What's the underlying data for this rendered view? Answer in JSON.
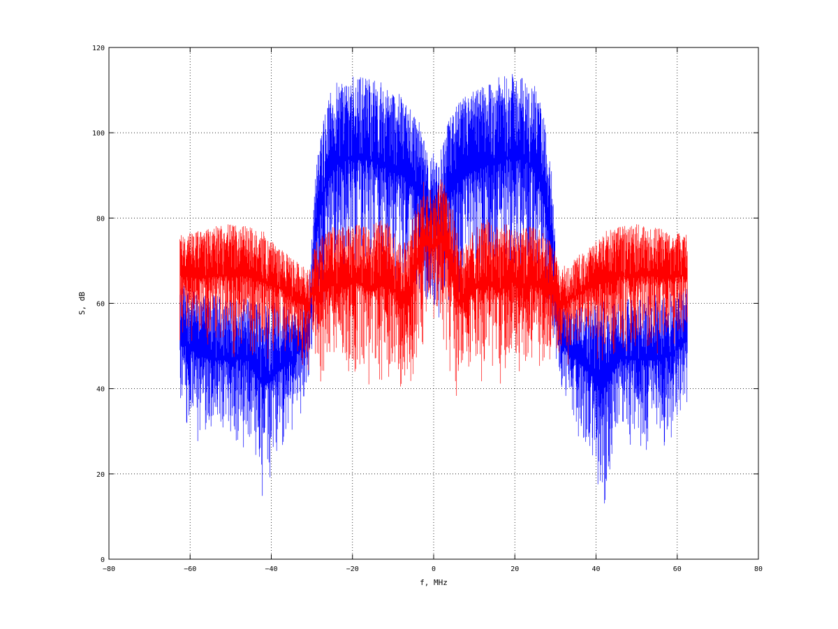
{
  "chart_data": {
    "type": "line",
    "title": "",
    "xlabel": "f, MHz",
    "ylabel": "S, dB",
    "xlim": [
      -80,
      80
    ],
    "ylim": [
      0,
      120
    ],
    "xticks": [
      -80,
      -60,
      -40,
      -20,
      0,
      20,
      40,
      60,
      80
    ],
    "yticks": [
      0,
      20,
      40,
      60,
      80,
      100,
      120
    ],
    "grid": true,
    "series": [
      {
        "color": "#0000ff",
        "x": [
          -62.5,
          -58,
          -54,
          -50,
          -46,
          -42,
          -38,
          -34,
          -31,
          -30,
          -29,
          -27,
          -25,
          -22,
          -19,
          -16,
          -13,
          -10,
          -8,
          -6,
          -4,
          -2,
          -1,
          0,
          1,
          2,
          4,
          6,
          8,
          10,
          13,
          16,
          19,
          22,
          25,
          27,
          29,
          30,
          31,
          34,
          38,
          42,
          46,
          50,
          54,
          58,
          62.5
        ],
        "upper": [
          65,
          62,
          62,
          61,
          61,
          61,
          60,
          58,
          62,
          75,
          92,
          105,
          111,
          113,
          114,
          113,
          112,
          110,
          109,
          107,
          104,
          97,
          93,
          96,
          93,
          97,
          104,
          107,
          109,
          110,
          112,
          113,
          114,
          113,
          111,
          105,
          92,
          75,
          62,
          58,
          60,
          61,
          61,
          61,
          62,
          62,
          65
        ],
        "lower": [
          35,
          30,
          28,
          29,
          30,
          15,
          25,
          35,
          38,
          48,
          55,
          62,
          68,
          70,
          69,
          70,
          68,
          68,
          67,
          66,
          64,
          62,
          60,
          58,
          60,
          62,
          64,
          66,
          67,
          68,
          68,
          70,
          69,
          70,
          68,
          62,
          55,
          48,
          38,
          35,
          25,
          15,
          30,
          29,
          28,
          30,
          35
        ]
      },
      {
        "color": "#ff0000",
        "x": [
          -62.5,
          -58,
          -54,
          -50,
          -46,
          -42,
          -38,
          -34,
          -31,
          -30,
          -28,
          -25,
          -22,
          -19,
          -16,
          -13,
          -10,
          -8,
          -6,
          -4,
          -2,
          0,
          2,
          4,
          6,
          8,
          10,
          13,
          16,
          19,
          22,
          25,
          28,
          30,
          31,
          34,
          38,
          42,
          46,
          50,
          54,
          58,
          62.5
        ],
        "upper": [
          76,
          77,
          78,
          79,
          78,
          77,
          73,
          70,
          68,
          72,
          76,
          78,
          78,
          79,
          78,
          80,
          78,
          74,
          76,
          86,
          90,
          85,
          90,
          86,
          76,
          74,
          78,
          80,
          78,
          79,
          78,
          78,
          76,
          72,
          68,
          70,
          73,
          77,
          78,
          79,
          78,
          77,
          76
        ],
        "lower": [
          55,
          52,
          52,
          51,
          52,
          50,
          52,
          50,
          48,
          50,
          45,
          48,
          46,
          48,
          44,
          46,
          45,
          44,
          40,
          48,
          55,
          58,
          55,
          48,
          40,
          44,
          45,
          46,
          44,
          48,
          46,
          48,
          45,
          50,
          48,
          50,
          52,
          50,
          52,
          51,
          52,
          52,
          55
        ]
      }
    ]
  }
}
